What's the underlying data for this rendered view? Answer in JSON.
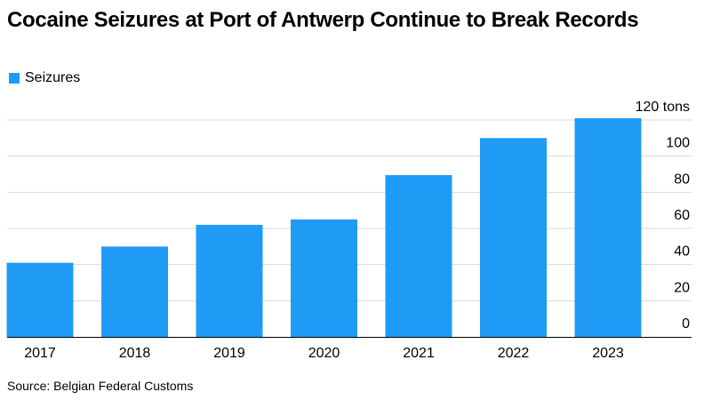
{
  "title": "Cocaine Seizures at Port of Antwerp Continue to Break Records",
  "legend": {
    "label": "Seizures"
  },
  "source": "Source: Belgian Federal Customs",
  "colors": {
    "bar": "#1f9bf5",
    "grid": "#d9d9d9",
    "axis": "#000000"
  },
  "chart_data": {
    "type": "bar",
    "title": "Cocaine Seizures at Port of Antwerp Continue to Break Records",
    "categories": [
      "2017",
      "2018",
      "2019",
      "2020",
      "2021",
      "2022",
      "2023"
    ],
    "series": [
      {
        "name": "Seizures",
        "values": [
          41,
          50,
          62,
          65,
          89.5,
          110,
          121
        ]
      }
    ],
    "yticks": [
      0,
      20,
      40,
      60,
      80,
      100,
      120
    ],
    "ytick_labels": [
      "0",
      "20",
      "40",
      "60",
      "80",
      "100",
      "120 tons"
    ],
    "ylim": [
      0,
      120
    ],
    "xlabel": "",
    "ylabel": "",
    "y_axis_position": "right",
    "grid": true,
    "legend_position": "top-left"
  }
}
